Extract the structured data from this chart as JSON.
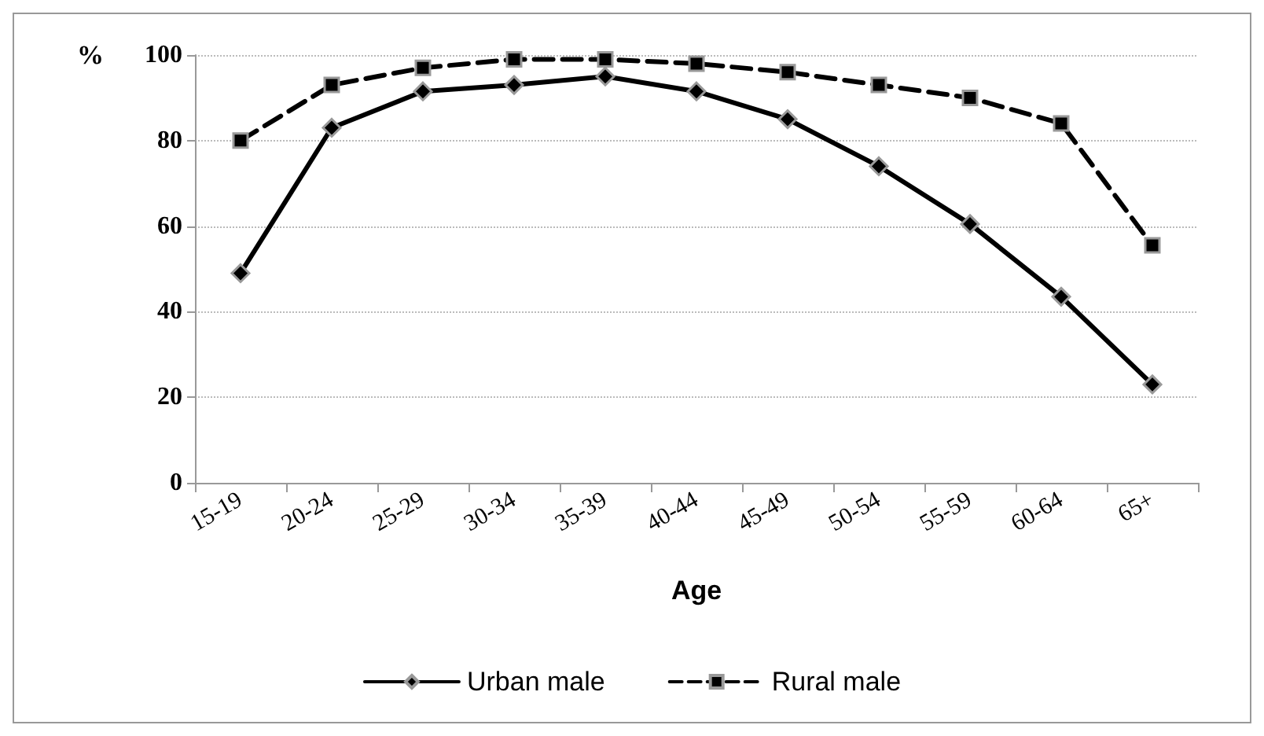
{
  "chart_data": {
    "type": "line",
    "ylabel": "%",
    "xlabel": "Age",
    "categories": [
      "15-19",
      "20-24",
      "25-29",
      "30-34",
      "35-39",
      "40-44",
      "45-49",
      "50-54",
      "55-59",
      "60-64",
      "65+"
    ],
    "series": [
      {
        "name": "Urban male",
        "color": "#000000",
        "marker": "diamond",
        "line_style": "solid",
        "values": [
          49,
          83,
          91.5,
          93,
          95,
          91.5,
          85,
          74,
          60.5,
          43.5,
          23
        ]
      },
      {
        "name": "Rural male",
        "color": "#000000",
        "marker": "square",
        "line_style": "dashed",
        "values": [
          80,
          93,
          97,
          99,
          99,
          98,
          96,
          93,
          90,
          84,
          55.5
        ]
      }
    ],
    "ylim": [
      0,
      100
    ],
    "yticks": [
      0,
      20,
      40,
      60,
      80,
      100
    ],
    "grid": "y",
    "legend": "bottom"
  }
}
